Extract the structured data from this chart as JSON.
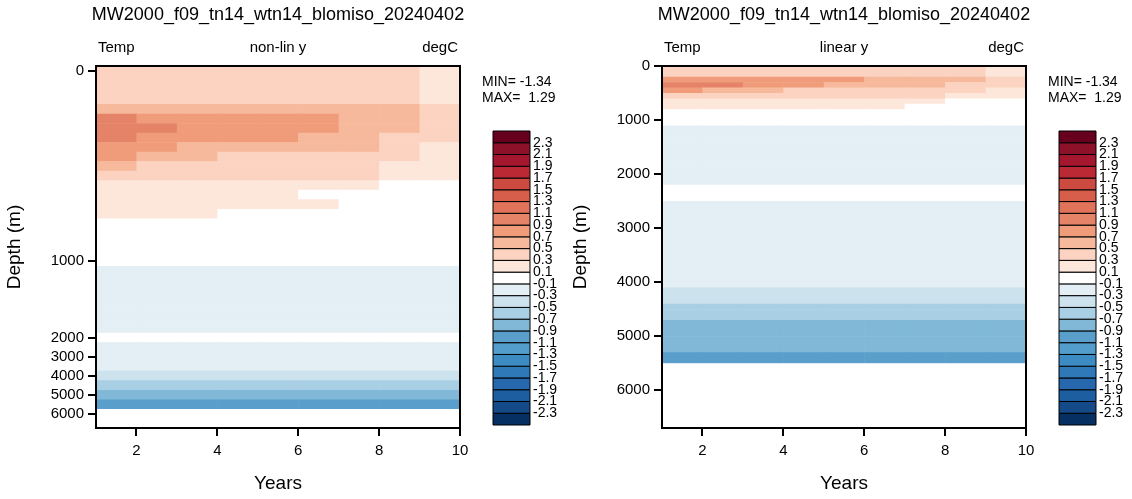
{
  "chart_data": [
    {
      "type": "heatmap",
      "title": "MW2000_f09_tn14_wtn14_blomiso_20240402",
      "xlabel": "Years",
      "ylabel": "Depth (m)",
      "annotations": [
        "Temp",
        "non-lin y",
        "degC",
        "MIN= -1.34",
        "MAX=  1.29"
      ],
      "x": [
        1.5,
        2.5,
        3.5,
        4.5,
        5.5,
        6.5,
        7.5,
        8.5,
        9.5
      ],
      "xlim": [
        1,
        10
      ],
      "xticks": [
        2,
        4,
        6,
        8,
        10
      ],
      "y_categories": [
        "0",
        null,
        null,
        null,
        null,
        null,
        null,
        null,
        null,
        null,
        null,
        null,
        null,
        null,
        null,
        null,
        null,
        null,
        null,
        null,
        "1000",
        null,
        null,
        null,
        null,
        null,
        null,
        null,
        "2000",
        null,
        "3000",
        null,
        "4000",
        null,
        "5000",
        null,
        "6000",
        null
      ],
      "clim": [
        -2.5,
        2.5
      ],
      "cticks": [
        -2.3,
        -2.1,
        -1.9,
        -1.7,
        -1.5,
        -1.3,
        -1.1,
        -0.9,
        -0.7,
        -0.5,
        -0.3,
        -0.1,
        0.1,
        0.3,
        0.5,
        0.7,
        0.9,
        1.1,
        1.3,
        1.5,
        1.7,
        1.9,
        2.1,
        2.3
      ],
      "colors": [
        "#053061",
        "#144a87",
        "#1c5ea0",
        "#2667ad",
        "#2f79b8",
        "#3d8bc3",
        "#529dcc",
        "#5a9fcc",
        "#81b8d7",
        "#a8cfe4",
        "#cce2ed",
        "#e4eef5",
        "#ffffff",
        "#fde6da",
        "#fbd3c0",
        "#f7b99b",
        "#f09c7b",
        "#e58368",
        "#e0735a",
        "#d85e4c",
        "#cc4a40",
        "#bb2a34",
        "#a5172f",
        "#8c1129",
        "#67001f"
      ],
      "cells": [
        [
          0.4,
          0.4,
          0.4,
          0.4,
          0.4,
          0.4,
          0.4,
          0.4,
          0.2
        ],
        [
          0.4,
          0.4,
          0.4,
          0.4,
          0.4,
          0.4,
          0.4,
          0.4,
          0.2
        ],
        [
          0.4,
          0.4,
          0.4,
          0.4,
          0.4,
          0.4,
          0.4,
          0.4,
          0.2
        ],
        [
          0.4,
          0.4,
          0.4,
          0.4,
          0.4,
          0.4,
          0.4,
          0.4,
          0.2
        ],
        [
          0.6,
          0.6,
          0.6,
          0.6,
          0.6,
          0.6,
          0.6,
          0.6,
          0.4
        ],
        [
          1.0,
          0.8,
          0.8,
          0.8,
          0.8,
          0.8,
          0.6,
          0.6,
          0.4
        ],
        [
          1.0,
          1.0,
          0.8,
          0.8,
          0.8,
          0.8,
          0.6,
          0.6,
          0.4
        ],
        [
          1.0,
          0.8,
          0.8,
          0.8,
          0.8,
          0.6,
          0.6,
          0.4,
          0.4
        ],
        [
          0.8,
          0.8,
          0.6,
          0.6,
          0.6,
          0.6,
          0.6,
          0.4,
          0.2
        ],
        [
          0.8,
          0.6,
          0.6,
          0.4,
          0.4,
          0.4,
          0.4,
          0.4,
          0.2
        ],
        [
          0.6,
          0.4,
          0.4,
          0.4,
          0.4,
          0.4,
          0.4,
          0.2,
          0.2
        ],
        [
          0.4,
          0.4,
          0.4,
          0.4,
          0.4,
          0.4,
          0.4,
          0.2,
          0.2
        ],
        [
          0.2,
          0.2,
          0.2,
          0.2,
          0.2,
          0.2,
          0.2,
          0,
          0
        ],
        [
          0.2,
          0.2,
          0.2,
          0.2,
          0.2,
          0,
          0,
          0,
          0
        ],
        [
          0.2,
          0.2,
          0.2,
          0.2,
          0.2,
          0.2,
          0,
          0,
          0
        ],
        [
          0.2,
          0.2,
          0.2,
          0,
          0,
          0,
          0,
          0,
          0
        ],
        [
          0,
          0,
          0,
          0,
          0,
          0,
          0,
          0,
          0
        ],
        [
          0,
          0,
          0,
          0,
          0,
          0,
          0,
          0,
          0
        ],
        [
          0,
          0,
          0,
          0,
          0,
          0,
          0,
          0,
          0
        ],
        [
          0,
          0,
          0,
          0,
          0,
          0,
          0,
          0,
          0
        ],
        [
          0,
          0,
          0,
          0,
          0,
          0,
          0,
          0,
          0
        ],
        [
          -0.2,
          -0.2,
          -0.2,
          -0.2,
          -0.2,
          -0.2,
          -0.2,
          -0.2,
          -0.2
        ],
        [
          -0.2,
          -0.2,
          -0.2,
          -0.2,
          -0.2,
          -0.2,
          -0.2,
          -0.2,
          -0.2
        ],
        [
          -0.2,
          -0.2,
          -0.2,
          -0.2,
          -0.2,
          -0.2,
          -0.2,
          -0.2,
          -0.2
        ],
        [
          -0.2,
          -0.2,
          -0.2,
          -0.2,
          -0.2,
          -0.2,
          -0.2,
          -0.2,
          -0.2
        ],
        [
          -0.2,
          -0.2,
          -0.2,
          -0.2,
          -0.2,
          -0.2,
          -0.2,
          -0.2,
          -0.2
        ],
        [
          -0.2,
          -0.2,
          -0.2,
          -0.2,
          -0.2,
          -0.2,
          -0.2,
          -0.2,
          -0.2
        ],
        [
          -0.2,
          -0.2,
          -0.2,
          -0.2,
          -0.2,
          -0.2,
          -0.2,
          -0.2,
          -0.2
        ],
        [
          0,
          0,
          0,
          0,
          0,
          0,
          0,
          0,
          0
        ],
        [
          -0.2,
          -0.2,
          -0.2,
          -0.2,
          -0.2,
          -0.2,
          -0.2,
          -0.2,
          -0.2
        ],
        [
          -0.2,
          -0.2,
          -0.2,
          -0.2,
          -0.2,
          -0.2,
          -0.2,
          -0.2,
          -0.2
        ],
        [
          -0.2,
          -0.2,
          -0.2,
          -0.2,
          -0.2,
          -0.2,
          -0.2,
          -0.2,
          -0.2
        ],
        [
          -0.4,
          -0.4,
          -0.4,
          -0.4,
          -0.4,
          -0.4,
          -0.4,
          -0.4,
          -0.4
        ],
        [
          -0.6,
          -0.6,
          -0.6,
          -0.6,
          -0.6,
          -0.6,
          -0.6,
          -0.6,
          -0.6
        ],
        [
          -0.8,
          -0.8,
          -0.8,
          -0.8,
          -0.8,
          -0.8,
          -0.8,
          -0.8,
          -0.8
        ],
        [
          -1.0,
          -1.0,
          -1.0,
          -1.0,
          -1.0,
          -1.0,
          -1.0,
          -1.0,
          -1.0
        ],
        [
          0,
          0,
          0,
          0,
          0,
          0,
          0,
          0,
          0
        ],
        [
          0,
          0,
          0,
          0,
          0,
          0,
          0,
          0,
          0
        ]
      ]
    },
    {
      "type": "heatmap",
      "title": "MW2000_f09_tn14_wtn14_blomiso_20240402",
      "xlabel": "Years",
      "ylabel": "Depth (m)",
      "annotations": [
        "Temp",
        "linear y",
        "degC",
        "MIN= -1.34",
        "MAX=  1.29"
      ],
      "x": [
        1.5,
        2.5,
        3.5,
        4.5,
        5.5,
        6.5,
        7.5,
        8.5,
        9.5
      ],
      "xlim": [
        1,
        10
      ],
      "xticks": [
        2,
        4,
        6,
        8,
        10
      ],
      "ylim": [
        6700,
        0
      ],
      "yticks": [
        0,
        1000,
        2000,
        3000,
        4000,
        5000,
        6000
      ],
      "clim": [
        -2.5,
        2.5
      ],
      "cticks": [
        -2.3,
        -2.1,
        -1.9,
        -1.7,
        -1.5,
        -1.3,
        -1.1,
        -0.9,
        -0.7,
        -0.5,
        -0.3,
        -0.1,
        0.1,
        0.3,
        0.5,
        0.7,
        0.9,
        1.1,
        1.3,
        1.5,
        1.7,
        1.9,
        2.1,
        2.3
      ],
      "colors": [
        "#053061",
        "#144a87",
        "#1c5ea0",
        "#2667ad",
        "#2f79b8",
        "#3d8bc3",
        "#529dcc",
        "#5a9fcc",
        "#81b8d7",
        "#a8cfe4",
        "#cce2ed",
        "#e4eef5",
        "#ffffff",
        "#fde6da",
        "#fbd3c0",
        "#f7b99b",
        "#f09c7b",
        "#e58368",
        "#e0735a",
        "#d85e4c",
        "#cc4a40",
        "#bb2a34",
        "#a5172f",
        "#8c1129",
        "#67001f"
      ],
      "cells": [
        [
          0.4,
          0.4,
          0.4,
          0.4,
          0.4,
          0.4,
          0.4,
          0.4,
          0.2
        ],
        [
          0.4,
          0.4,
          0.4,
          0.4,
          0.4,
          0.4,
          0.4,
          0.4,
          0.2
        ],
        [
          0.8,
          0.8,
          0.8,
          0.8,
          0.8,
          0.6,
          0.6,
          0.6,
          0.4
        ],
        [
          1.0,
          1.0,
          0.8,
          0.8,
          0.6,
          0.6,
          0.6,
          0.4,
          0.4
        ],
        [
          0.8,
          0.6,
          0.6,
          0.4,
          0.4,
          0.4,
          0.4,
          0.4,
          0.2
        ],
        [
          0.4,
          0.4,
          0.4,
          0.4,
          0.4,
          0.4,
          0.4,
          0.2,
          0.2
        ],
        [
          0.2,
          0.2,
          0.2,
          0.2,
          0.2,
          0.2,
          0.2,
          0,
          0
        ],
        [
          0.2,
          0.2,
          0.2,
          0.2,
          0.2,
          0.2,
          0,
          0,
          0
        ],
        [
          0,
          0,
          0,
          0,
          0,
          0,
          0,
          0,
          0
        ],
        [
          0,
          0,
          0,
          0,
          0,
          0,
          0,
          0,
          0
        ],
        [
          0,
          0,
          0,
          0,
          0,
          0,
          0,
          0,
          0
        ],
        [
          -0.2,
          -0.2,
          -0.2,
          -0.2,
          -0.2,
          -0.2,
          -0.2,
          -0.2,
          -0.2
        ],
        [
          -0.2,
          -0.2,
          -0.2,
          -0.2,
          -0.2,
          -0.2,
          -0.2,
          -0.2,
          -0.2
        ],
        [
          -0.2,
          -0.2,
          -0.2,
          -0.2,
          -0.2,
          -0.2,
          -0.2,
          -0.2,
          -0.2
        ],
        [
          -0.2,
          -0.2,
          -0.2,
          -0.2,
          -0.2,
          -0.2,
          -0.2,
          -0.2,
          -0.2
        ],
        [
          -0.2,
          -0.2,
          -0.2,
          -0.2,
          -0.2,
          -0.2,
          -0.2,
          -0.2,
          -0.2
        ],
        [
          -0.2,
          -0.2,
          -0.2,
          -0.2,
          -0.2,
          -0.2,
          -0.2,
          -0.2,
          -0.2
        ],
        [
          -0.2,
          -0.2,
          -0.2,
          -0.2,
          -0.2,
          -0.2,
          -0.2,
          -0.2,
          -0.2
        ],
        [
          -0.2,
          -0.2,
          -0.2,
          -0.2,
          -0.2,
          -0.2,
          -0.2,
          -0.2,
          -0.2
        ],
        [
          -0.2,
          -0.2,
          -0.2,
          -0.2,
          -0.2,
          -0.2,
          -0.2,
          -0.2,
          -0.2
        ],
        [
          -0.2,
          -0.2,
          -0.2,
          -0.2,
          -0.2,
          -0.2,
          -0.2,
          -0.2,
          -0.2
        ],
        [
          -0.2,
          -0.2,
          -0.2,
          -0.2,
          -0.2,
          -0.2,
          -0.2,
          -0.2,
          -0.2
        ],
        [
          0,
          0,
          0,
          0,
          0,
          0,
          0,
          0,
          0
        ],
        [
          0,
          0,
          0,
          0,
          0,
          0,
          0,
          0,
          0
        ],
        [
          0,
          0,
          0,
          0,
          0,
          0,
          0,
          0,
          0
        ],
        [
          -0.2,
          -0.2,
          -0.2,
          -0.2,
          -0.2,
          -0.2,
          -0.2,
          -0.2,
          -0.2
        ],
        [
          -0.2,
          -0.2,
          -0.2,
          -0.2,
          -0.2,
          -0.2,
          -0.2,
          -0.2,
          -0.2
        ],
        [
          -0.2,
          -0.2,
          -0.2,
          -0.2,
          -0.2,
          -0.2,
          -0.2,
          -0.2,
          -0.2
        ],
        [
          -0.2,
          -0.2,
          -0.2,
          -0.2,
          -0.2,
          -0.2,
          -0.2,
          -0.2,
          -0.2
        ],
        [
          -0.2,
          -0.2,
          -0.2,
          -0.2,
          -0.2,
          -0.2,
          -0.2,
          -0.2,
          -0.2
        ],
        [
          -0.2,
          -0.2,
          -0.2,
          -0.2,
          -0.2,
          -0.2,
          -0.2,
          -0.2,
          -0.2
        ],
        [
          -0.2,
          -0.2,
          -0.2,
          -0.2,
          -0.2,
          -0.2,
          -0.2,
          -0.2,
          -0.2
        ],
        [
          -0.2,
          -0.2,
          -0.2,
          -0.2,
          -0.2,
          -0.2,
          -0.2,
          -0.2,
          -0.2
        ],
        [
          -0.2,
          -0.2,
          -0.2,
          -0.2,
          -0.2,
          -0.2,
          -0.2,
          -0.2,
          -0.2
        ],
        [
          -0.2,
          -0.2,
          -0.2,
          -0.2,
          -0.2,
          -0.2,
          -0.2,
          -0.2,
          -0.2
        ],
        [
          -0.2,
          -0.2,
          -0.2,
          -0.2,
          -0.2,
          -0.2,
          -0.2,
          -0.2,
          -0.2
        ],
        [
          -0.2,
          -0.2,
          -0.2,
          -0.2,
          -0.2,
          -0.2,
          -0.2,
          -0.2,
          -0.2
        ],
        [
          -0.2,
          -0.2,
          -0.2,
          -0.2,
          -0.2,
          -0.2,
          -0.2,
          -0.2,
          -0.2
        ],
        [
          -0.2,
          -0.2,
          -0.2,
          -0.2,
          -0.2,
          -0.2,
          -0.2,
          -0.2,
          -0.2
        ],
        [
          -0.2,
          -0.2,
          -0.2,
          -0.2,
          -0.2,
          -0.2,
          -0.2,
          -0.2,
          -0.2
        ],
        [
          -0.2,
          -0.2,
          -0.2,
          -0.2,
          -0.2,
          -0.2,
          -0.2,
          -0.2,
          -0.2
        ],
        [
          -0.4,
          -0.4,
          -0.4,
          -0.4,
          -0.4,
          -0.4,
          -0.4,
          -0.4,
          -0.4
        ],
        [
          -0.4,
          -0.4,
          -0.4,
          -0.4,
          -0.4,
          -0.4,
          -0.4,
          -0.4,
          -0.4
        ],
        [
          -0.4,
          -0.4,
          -0.4,
          -0.4,
          -0.4,
          -0.4,
          -0.4,
          -0.4,
          -0.4
        ],
        [
          -0.6,
          -0.6,
          -0.6,
          -0.6,
          -0.6,
          -0.6,
          -0.6,
          -0.6,
          -0.6
        ],
        [
          -0.6,
          -0.6,
          -0.6,
          -0.6,
          -0.6,
          -0.6,
          -0.6,
          -0.6,
          -0.6
        ],
        [
          -0.6,
          -0.6,
          -0.6,
          -0.6,
          -0.6,
          -0.6,
          -0.6,
          -0.6,
          -0.6
        ],
        [
          -0.8,
          -0.8,
          -0.8,
          -0.8,
          -0.8,
          -0.8,
          -0.8,
          -0.8,
          -0.8
        ],
        [
          -0.8,
          -0.8,
          -0.8,
          -0.8,
          -0.8,
          -0.8,
          -0.8,
          -0.8,
          -0.8
        ],
        [
          -0.8,
          -0.8,
          -0.8,
          -0.8,
          -0.8,
          -0.8,
          -0.8,
          -0.8,
          -0.8
        ],
        [
          -0.8,
          -0.8,
          -0.8,
          -0.8,
          -0.8,
          -0.8,
          -0.8,
          -0.8,
          -0.8
        ],
        [
          -0.8,
          -0.8,
          -0.8,
          -0.8,
          -0.8,
          -0.8,
          -0.8,
          -0.8,
          -0.8
        ],
        [
          -0.8,
          -0.8,
          -0.8,
          -0.8,
          -0.8,
          -0.8,
          -0.8,
          -0.8,
          -0.8
        ],
        [
          -1.0,
          -1.0,
          -1.0,
          -1.0,
          -1.0,
          -1.0,
          -1.0,
          -1.0,
          -1.0
        ],
        [
          -1.0,
          -1.0,
          -1.0,
          -1.0,
          -1.0,
          -1.0,
          -1.0,
          -1.0,
          -1.0
        ],
        [
          0,
          0,
          0,
          0,
          0,
          0,
          0,
          0,
          0
        ],
        [
          0,
          0,
          0,
          0,
          0,
          0,
          0,
          0,
          0
        ],
        [
          0,
          0,
          0,
          0,
          0,
          0,
          0,
          0,
          0
        ],
        [
          0,
          0,
          0,
          0,
          0,
          0,
          0,
          0,
          0
        ],
        [
          0,
          0,
          0,
          0,
          0,
          0,
          0,
          0,
          0
        ],
        [
          0,
          0,
          0,
          0,
          0,
          0,
          0,
          0,
          0
        ],
        [
          0,
          0,
          0,
          0,
          0,
          0,
          0,
          0,
          0
        ],
        [
          0,
          0,
          0,
          0,
          0,
          0,
          0,
          0,
          0
        ],
        [
          0,
          0,
          0,
          0,
          0,
          0,
          0,
          0,
          0
        ],
        [
          0,
          0,
          0,
          0,
          0,
          0,
          0,
          0,
          0
        ],
        [
          0,
          0,
          0,
          0,
          0,
          0,
          0,
          0,
          0
        ],
        [
          0,
          0,
          0,
          0,
          0,
          0,
          0,
          0,
          0
        ]
      ]
    }
  ]
}
